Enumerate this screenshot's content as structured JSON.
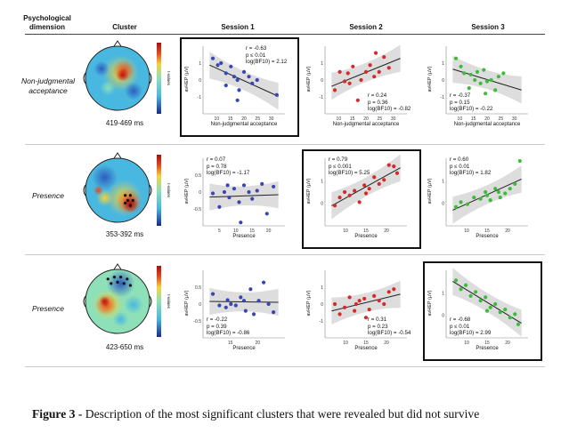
{
  "header": {
    "dimension": [
      "Psychological",
      "dimension"
    ],
    "cluster": "Cluster",
    "session1": "Session 1",
    "session2": "Session 2",
    "session3": "Session 3"
  },
  "rows": [
    {
      "dimension": [
        "Non-judgmental",
        "acceptance"
      ],
      "time": "419-469 ms",
      "xlabel": "Non-judgmental acceptance",
      "ylabel": "avHEP (µV)",
      "panels": [
        {
          "r": "r = -0.63",
          "p": "p ≤ 0.01",
          "bf": "log(BF10) = 2.12",
          "color": "#3a46b0",
          "highlight": true,
          "xticks": [
            "10",
            "15",
            "20",
            "25",
            "30"
          ],
          "yticks": [
            "1",
            "0",
            "-1"
          ],
          "stats_pos": "top-right"
        },
        {
          "r": "r = 0.24",
          "p": "p = 0.36",
          "bf": "log(BF10) = -0.82",
          "color": "#d42a2a",
          "highlight": false,
          "xticks": [
            "10",
            "15",
            "20",
            "25",
            "30"
          ],
          "yticks": [
            "1",
            "0",
            "-1"
          ],
          "stats_pos": "bottom-right"
        },
        {
          "r": "r = -0.37",
          "p": "p = 0.15",
          "bf": "log(BF10) = -0.22",
          "color": "#3dbb3d",
          "highlight": false,
          "xticks": [
            "10",
            "15",
            "20",
            "25",
            "30"
          ],
          "yticks": [
            "1",
            "0",
            "-1"
          ],
          "stats_pos": "bottom-left"
        }
      ]
    },
    {
      "dimension": [
        "Presence"
      ],
      "time": "353-392 ms",
      "xlabel": "Presence",
      "ylabel": "avHEP (µV)",
      "panels": [
        {
          "r": "r = 0.07",
          "p": "p = 0.78",
          "bf": "log(BF10) = -1.17",
          "color": "#3a46b0",
          "highlight": false,
          "xticks": [
            "5",
            "10",
            "15",
            "20"
          ],
          "yticks": [
            "0.5",
            "0",
            "-0.5"
          ],
          "stats_pos": "top-left"
        },
        {
          "r": "r = 0.79",
          "p": "p ≤ 0.001",
          "bf": "log(BF10) = 5.25",
          "color": "#d42a2a",
          "highlight": true,
          "xticks": [
            "10",
            "15",
            "20"
          ],
          "yticks": [
            "1",
            "0"
          ],
          "stats_pos": "top-left"
        },
        {
          "r": "r = 0.60",
          "p": "p ≤ 0.01",
          "bf": "log(BF10) = 1.82",
          "color": "#3dbb3d",
          "highlight": false,
          "xticks": [
            "10",
            "15",
            "20"
          ],
          "yticks": [
            "1",
            "0"
          ],
          "stats_pos": "top-left"
        }
      ]
    },
    {
      "dimension": [
        "Presence"
      ],
      "time": "423-650 ms",
      "xlabel": "Presence",
      "ylabel": "avHEP (µV)",
      "panels": [
        {
          "r": "r = -0.22",
          "p": "p = 0.39",
          "bf": "log(BF10) = -0.86",
          "color": "#3a46b0",
          "highlight": false,
          "xticks": [
            "15",
            "20"
          ],
          "yticks": [
            "0.5",
            "0",
            "-0.5"
          ],
          "stats_pos": "bottom-left"
        },
        {
          "r": "r = 0.31",
          "p": "p = 0.23",
          "bf": "log(BF10) = -0.54",
          "color": "#d42a2a",
          "highlight": false,
          "xticks": [
            "10",
            "15",
            "20"
          ],
          "yticks": [
            "1",
            "0",
            "-1"
          ],
          "stats_pos": "bottom-right"
        },
        {
          "r": "r = -0.68",
          "p": "p ≤ 0.01",
          "bf": "log(BF10) = 2.99",
          "color": "#3dbb3d",
          "highlight": true,
          "xticks": [
            "10",
            "15",
            "20"
          ],
          "yticks": [
            "1",
            "0"
          ],
          "stats_pos": "bottom-left"
        }
      ]
    }
  ],
  "colorbar_label": "t-values",
  "caption": {
    "bold": "Figure 3 -",
    "text": " Description of the most significant clusters that were revealed but did not survive"
  }
}
